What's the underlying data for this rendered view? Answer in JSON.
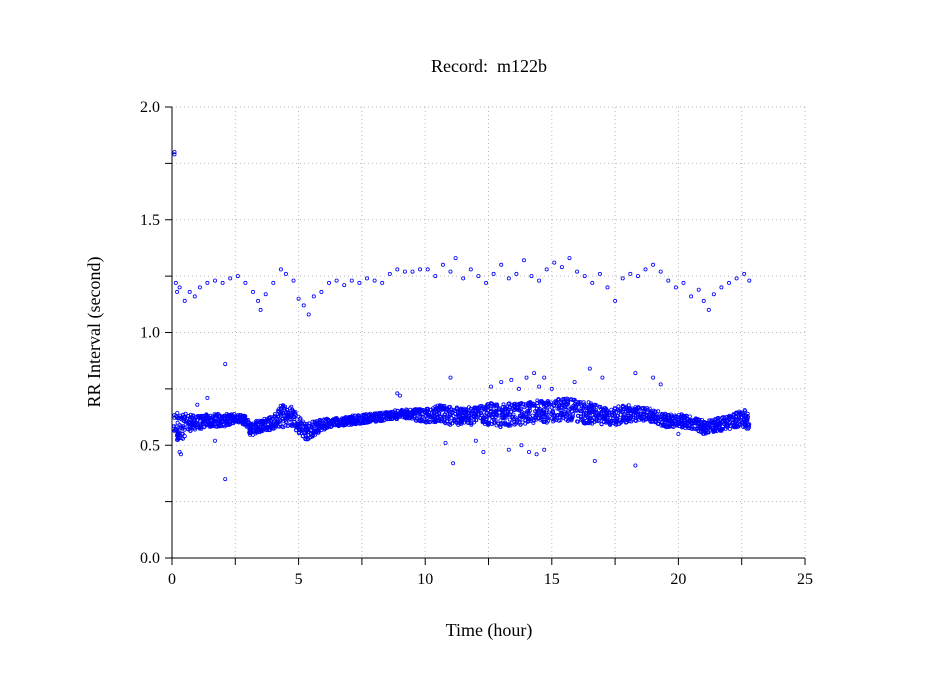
{
  "chart_data": {
    "type": "scatter",
    "title": "Record:  m122b",
    "xlabel": "Time (hour)",
    "ylabel": "RR Interval (second)",
    "xlim": [
      0,
      25
    ],
    "ylim": [
      0,
      2.0
    ],
    "xticks": [
      "0",
      "5",
      "10",
      "15",
      "20",
      "25"
    ],
    "yticks": [
      "0.0",
      "0.5",
      "1.0",
      "1.5",
      "2.0"
    ],
    "x_minor_step": 2.5,
    "y_minor_step": 0.25,
    "grid": true,
    "marker_color": "#0000ff",
    "main_band": [
      [
        0.05,
        0.59,
        0.06
      ],
      [
        0.3,
        0.57,
        0.07
      ],
      [
        0.6,
        0.6,
        0.04
      ],
      [
        1.0,
        0.6,
        0.03
      ],
      [
        1.5,
        0.61,
        0.03
      ],
      [
        2.0,
        0.61,
        0.03
      ],
      [
        2.5,
        0.62,
        0.02
      ],
      [
        2.9,
        0.61,
        0.02
      ],
      [
        3.1,
        0.57,
        0.03
      ],
      [
        3.5,
        0.59,
        0.03
      ],
      [
        4.0,
        0.6,
        0.03
      ],
      [
        4.3,
        0.63,
        0.05
      ],
      [
        4.7,
        0.63,
        0.05
      ],
      [
        5.0,
        0.59,
        0.04
      ],
      [
        5.3,
        0.56,
        0.04
      ],
      [
        5.7,
        0.58,
        0.03
      ],
      [
        6.2,
        0.6,
        0.02
      ],
      [
        7.0,
        0.61,
        0.02
      ],
      [
        7.8,
        0.62,
        0.02
      ],
      [
        8.5,
        0.63,
        0.02
      ],
      [
        9.2,
        0.64,
        0.02
      ],
      [
        10.0,
        0.63,
        0.03
      ],
      [
        10.5,
        0.64,
        0.04
      ],
      [
        11.0,
        0.63,
        0.04
      ],
      [
        11.5,
        0.63,
        0.04
      ],
      [
        12.0,
        0.63,
        0.04
      ],
      [
        12.5,
        0.64,
        0.05
      ],
      [
        13.0,
        0.63,
        0.05
      ],
      [
        13.5,
        0.64,
        0.05
      ],
      [
        14.0,
        0.64,
        0.05
      ],
      [
        14.5,
        0.65,
        0.05
      ],
      [
        15.0,
        0.65,
        0.05
      ],
      [
        15.5,
        0.66,
        0.05
      ],
      [
        16.0,
        0.65,
        0.05
      ],
      [
        16.5,
        0.64,
        0.05
      ],
      [
        17.0,
        0.63,
        0.04
      ],
      [
        17.5,
        0.63,
        0.04
      ],
      [
        18.0,
        0.64,
        0.04
      ],
      [
        18.5,
        0.64,
        0.03
      ],
      [
        19.0,
        0.63,
        0.03
      ],
      [
        19.5,
        0.61,
        0.03
      ],
      [
        20.0,
        0.61,
        0.03
      ],
      [
        20.5,
        0.6,
        0.03
      ],
      [
        21.0,
        0.58,
        0.03
      ],
      [
        21.5,
        0.59,
        0.03
      ],
      [
        22.0,
        0.6,
        0.03
      ],
      [
        22.5,
        0.62,
        0.04
      ],
      [
        22.8,
        0.61,
        0.04
      ]
    ],
    "upper_points": [
      [
        0.1,
        1.79
      ],
      [
        0.1,
        1.8
      ],
      [
        0.15,
        1.22
      ],
      [
        0.2,
        1.18
      ],
      [
        0.3,
        1.2
      ],
      [
        0.5,
        1.14
      ],
      [
        0.7,
        1.18
      ],
      [
        0.9,
        1.16
      ],
      [
        1.1,
        1.2
      ],
      [
        1.4,
        1.22
      ],
      [
        1.7,
        1.23
      ],
      [
        2.0,
        1.22
      ],
      [
        2.3,
        1.24
      ],
      [
        2.6,
        1.25
      ],
      [
        2.9,
        1.22
      ],
      [
        3.2,
        1.18
      ],
      [
        3.4,
        1.14
      ],
      [
        3.5,
        1.1
      ],
      [
        3.7,
        1.17
      ],
      [
        4.0,
        1.22
      ],
      [
        4.3,
        1.28
      ],
      [
        4.5,
        1.26
      ],
      [
        4.8,
        1.23
      ],
      [
        5.0,
        1.15
      ],
      [
        5.2,
        1.12
      ],
      [
        5.4,
        1.08
      ],
      [
        5.6,
        1.16
      ],
      [
        5.9,
        1.18
      ],
      [
        6.2,
        1.22
      ],
      [
        6.5,
        1.23
      ],
      [
        6.8,
        1.21
      ],
      [
        7.1,
        1.23
      ],
      [
        7.4,
        1.22
      ],
      [
        7.7,
        1.24
      ],
      [
        8.0,
        1.23
      ],
      [
        8.3,
        1.22
      ],
      [
        8.6,
        1.26
      ],
      [
        8.9,
        1.28
      ],
      [
        9.2,
        1.27
      ],
      [
        9.5,
        1.27
      ],
      [
        9.8,
        1.28
      ],
      [
        10.1,
        1.28
      ],
      [
        10.4,
        1.25
      ],
      [
        10.7,
        1.3
      ],
      [
        11.0,
        1.27
      ],
      [
        11.2,
        1.33
      ],
      [
        11.5,
        1.24
      ],
      [
        11.8,
        1.28
      ],
      [
        12.1,
        1.25
      ],
      [
        12.4,
        1.22
      ],
      [
        12.7,
        1.26
      ],
      [
        13.0,
        1.3
      ],
      [
        13.3,
        1.24
      ],
      [
        13.6,
        1.26
      ],
      [
        13.9,
        1.32
      ],
      [
        14.2,
        1.25
      ],
      [
        14.5,
        1.23
      ],
      [
        14.8,
        1.28
      ],
      [
        15.1,
        1.31
      ],
      [
        15.4,
        1.29
      ],
      [
        15.7,
        1.33
      ],
      [
        16.0,
        1.27
      ],
      [
        16.3,
        1.25
      ],
      [
        16.6,
        1.22
      ],
      [
        16.9,
        1.26
      ],
      [
        17.2,
        1.2
      ],
      [
        17.5,
        1.14
      ],
      [
        17.8,
        1.24
      ],
      [
        18.1,
        1.26
      ],
      [
        18.4,
        1.25
      ],
      [
        18.7,
        1.28
      ],
      [
        19.0,
        1.3
      ],
      [
        19.3,
        1.27
      ],
      [
        19.6,
        1.23
      ],
      [
        19.9,
        1.2
      ],
      [
        20.2,
        1.22
      ],
      [
        20.5,
        1.16
      ],
      [
        20.8,
        1.19
      ],
      [
        21.0,
        1.14
      ],
      [
        21.2,
        1.1
      ],
      [
        21.4,
        1.17
      ],
      [
        21.7,
        1.2
      ],
      [
        22.0,
        1.22
      ],
      [
        22.3,
        1.24
      ],
      [
        22.6,
        1.26
      ],
      [
        22.8,
        1.23
      ]
    ],
    "outlier_points": [
      [
        2.1,
        0.86
      ],
      [
        2.1,
        0.35
      ],
      [
        0.3,
        0.47
      ],
      [
        0.35,
        0.46
      ],
      [
        1.0,
        0.68
      ],
      [
        1.4,
        0.71
      ],
      [
        1.7,
        0.52
      ],
      [
        4.4,
        0.67
      ],
      [
        8.9,
        0.73
      ],
      [
        9.0,
        0.72
      ],
      [
        11.0,
        0.8
      ],
      [
        11.1,
        0.42
      ],
      [
        10.8,
        0.51
      ],
      [
        12.3,
        0.47
      ],
      [
        12.6,
        0.76
      ],
      [
        13.0,
        0.78
      ],
      [
        13.4,
        0.79
      ],
      [
        13.7,
        0.75
      ],
      [
        14.0,
        0.8
      ],
      [
        14.3,
        0.82
      ],
      [
        14.5,
        0.76
      ],
      [
        14.7,
        0.8
      ],
      [
        13.3,
        0.48
      ],
      [
        13.8,
        0.5
      ],
      [
        14.1,
        0.47
      ],
      [
        14.4,
        0.46
      ],
      [
        14.7,
        0.48
      ],
      [
        15.0,
        0.75
      ],
      [
        16.5,
        0.84
      ],
      [
        16.7,
        0.43
      ],
      [
        17.0,
        0.8
      ],
      [
        18.3,
        0.82
      ],
      [
        18.3,
        0.41
      ],
      [
        19.0,
        0.8
      ],
      [
        19.3,
        0.77
      ],
      [
        20.0,
        0.55
      ],
      [
        12.0,
        0.52
      ],
      [
        15.9,
        0.78
      ]
    ]
  }
}
